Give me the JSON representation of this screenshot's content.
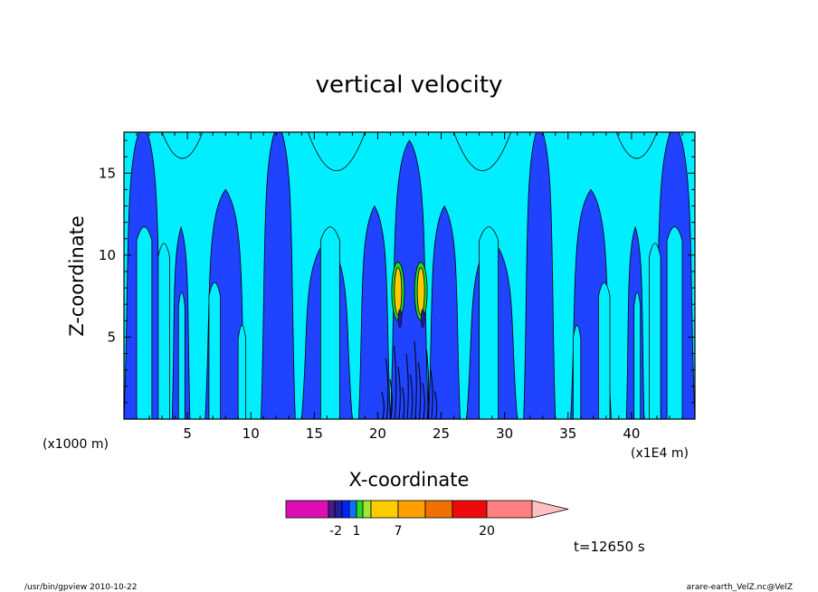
{
  "chart_data": {
    "type": "heatmap",
    "title": "vertical velocity",
    "xlabel": "X-coordinate",
    "ylabel": "Z-coordinate",
    "x_unit_left": "(x1000 m)",
    "x_unit_right": "(x1E4 m)",
    "xlim": [
      0,
      45
    ],
    "ylim": [
      0,
      17.5
    ],
    "x_ticks": [
      5,
      10,
      15,
      20,
      25,
      30,
      35,
      40
    ],
    "y_ticks": [
      5,
      10,
      15
    ],
    "time_label": "t=12650 s",
    "colorbar": {
      "ticks": [
        "-2",
        "1",
        "7",
        "20"
      ],
      "colors": [
        "#dd0fb4",
        "#dd0fb4",
        "#1f1f9b",
        "#0022ff",
        "#0b74ff",
        "#00ffff",
        "#22dd22",
        "#a0e632",
        "#ffcc00",
        "#ffa000",
        "#f07000",
        "#ee0a0a",
        "#ff8080",
        "#ffc0c0"
      ]
    },
    "field_colors": {
      "negative": "#1f43ff",
      "positive": "#00eeff",
      "weak_updraft": "#22dd22",
      "strong_updraft": "#ffcc00",
      "contour": "#000000"
    }
  },
  "footer": {
    "left": "/usr/bin/gpview   2010-10-22",
    "right": "arare-earth_VelZ.nc@VelZ"
  }
}
